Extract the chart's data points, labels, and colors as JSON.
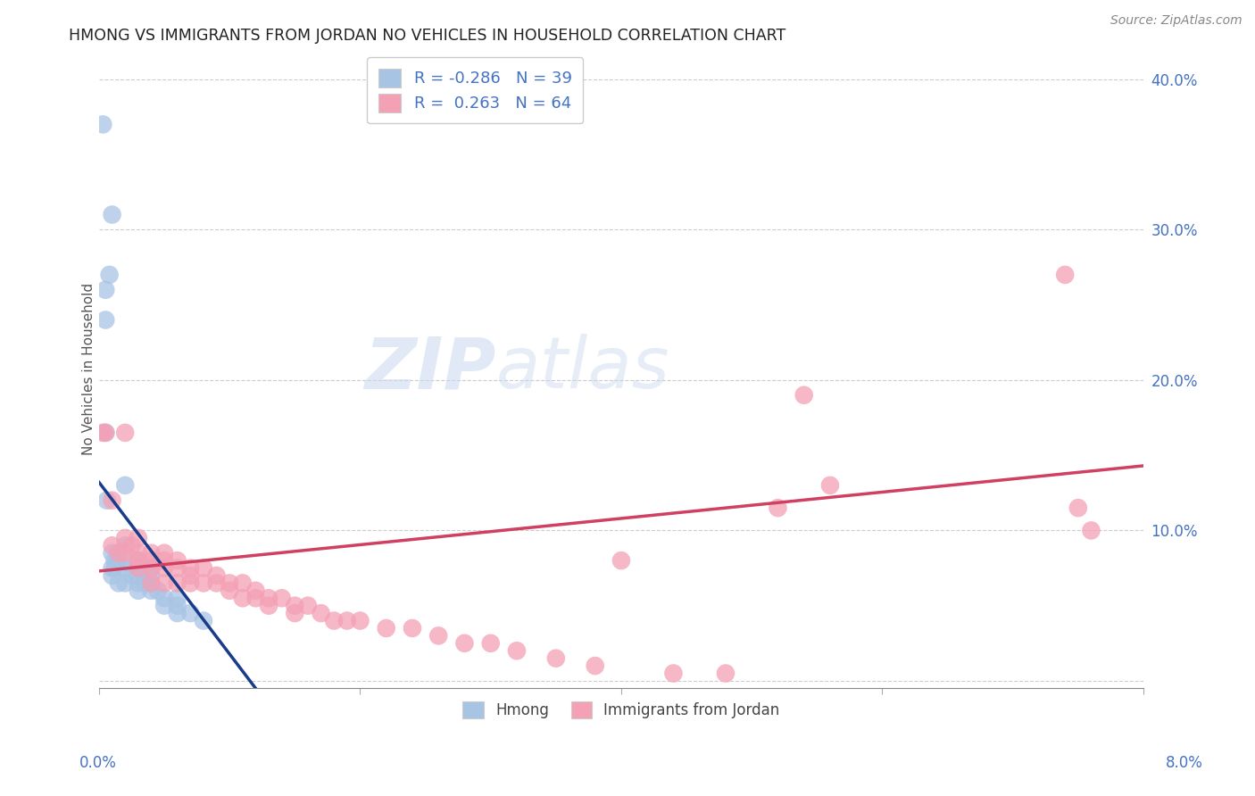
{
  "title": "HMONG VS IMMIGRANTS FROM JORDAN NO VEHICLES IN HOUSEHOLD CORRELATION CHART",
  "source": "Source: ZipAtlas.com",
  "ylabel": "No Vehicles in Household",
  "xlim": [
    0.0,
    0.08
  ],
  "ylim": [
    -0.005,
    0.42
  ],
  "hmong_R": -0.286,
  "hmong_N": 39,
  "jordan_R": 0.263,
  "jordan_N": 64,
  "hmong_color": "#a8c4e5",
  "jordan_color": "#f4a0b5",
  "hmong_line_color": "#1a3a8a",
  "jordan_line_color": "#d04060",
  "legend_label1": "Hmong",
  "legend_label2": "Immigrants from Jordan",
  "watermark_zip": "ZIP",
  "watermark_atlas": "atlas",
  "hmong_x": [
    0.0003,
    0.0005,
    0.0005,
    0.0005,
    0.0006,
    0.0008,
    0.001,
    0.001,
    0.001,
    0.001,
    0.0012,
    0.0012,
    0.0015,
    0.0015,
    0.0015,
    0.002,
    0.002,
    0.002,
    0.002,
    0.002,
    0.0025,
    0.003,
    0.003,
    0.003,
    0.003,
    0.003,
    0.0035,
    0.004,
    0.004,
    0.004,
    0.004,
    0.0045,
    0.005,
    0.005,
    0.006,
    0.006,
    0.006,
    0.007,
    0.008
  ],
  "hmong_y": [
    0.37,
    0.26,
    0.24,
    0.165,
    0.12,
    0.27,
    0.31,
    0.085,
    0.075,
    0.07,
    0.08,
    0.075,
    0.085,
    0.08,
    0.065,
    0.13,
    0.09,
    0.08,
    0.075,
    0.065,
    0.07,
    0.08,
    0.075,
    0.07,
    0.065,
    0.06,
    0.065,
    0.075,
    0.07,
    0.065,
    0.06,
    0.06,
    0.055,
    0.05,
    0.055,
    0.05,
    0.045,
    0.045,
    0.04
  ],
  "jordan_x": [
    0.0003,
    0.0005,
    0.001,
    0.001,
    0.0015,
    0.002,
    0.002,
    0.002,
    0.0025,
    0.003,
    0.003,
    0.003,
    0.003,
    0.004,
    0.004,
    0.004,
    0.004,
    0.005,
    0.005,
    0.005,
    0.005,
    0.006,
    0.006,
    0.006,
    0.007,
    0.007,
    0.007,
    0.008,
    0.008,
    0.009,
    0.009,
    0.01,
    0.01,
    0.011,
    0.011,
    0.012,
    0.012,
    0.013,
    0.013,
    0.014,
    0.015,
    0.015,
    0.016,
    0.017,
    0.018,
    0.019,
    0.02,
    0.022,
    0.024,
    0.026,
    0.028,
    0.03,
    0.032,
    0.035,
    0.038,
    0.04,
    0.044,
    0.048,
    0.052,
    0.054,
    0.056,
    0.074,
    0.075,
    0.076
  ],
  "jordan_y": [
    0.165,
    0.165,
    0.12,
    0.09,
    0.085,
    0.165,
    0.095,
    0.085,
    0.09,
    0.095,
    0.085,
    0.08,
    0.075,
    0.085,
    0.08,
    0.075,
    0.065,
    0.085,
    0.08,
    0.075,
    0.065,
    0.08,
    0.075,
    0.065,
    0.075,
    0.07,
    0.065,
    0.075,
    0.065,
    0.07,
    0.065,
    0.065,
    0.06,
    0.065,
    0.055,
    0.06,
    0.055,
    0.055,
    0.05,
    0.055,
    0.05,
    0.045,
    0.05,
    0.045,
    0.04,
    0.04,
    0.04,
    0.035,
    0.035,
    0.03,
    0.025,
    0.025,
    0.02,
    0.015,
    0.01,
    0.08,
    0.005,
    0.005,
    0.115,
    0.19,
    0.13,
    0.27,
    0.115,
    0.1
  ],
  "hmong_line_x": [
    0.0,
    0.012
  ],
  "hmong_line_y": [
    0.132,
    -0.005
  ],
  "jordan_line_x": [
    0.0,
    0.08
  ],
  "jordan_line_y": [
    0.073,
    0.143
  ],
  "yticks": [
    0.0,
    0.1,
    0.2,
    0.3,
    0.4
  ],
  "ytick_labels": [
    "",
    "10.0%",
    "20.0%",
    "30.0%",
    "40.0%"
  ],
  "xtick_minor": [
    0.0,
    0.02,
    0.04,
    0.06,
    0.08
  ]
}
